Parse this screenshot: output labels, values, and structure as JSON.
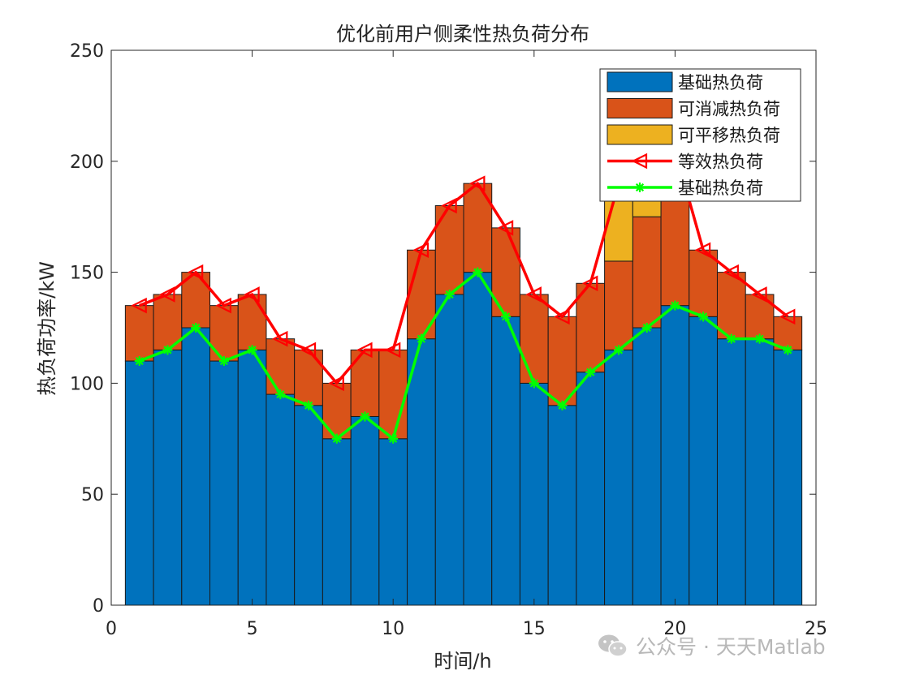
{
  "chart_data": {
    "type": "bar",
    "stacked": true,
    "title": "优化前用户侧柔性热负荷分布",
    "xlabel": "时间/h",
    "ylabel": "热负荷功率/kW",
    "xlim": [
      0,
      25
    ],
    "ylim": [
      0,
      250
    ],
    "xticks": [
      "0",
      "5",
      "10",
      "15",
      "20",
      "25"
    ],
    "yticks": [
      "0",
      "50",
      "100",
      "150",
      "200",
      "250"
    ],
    "x": [
      1,
      2,
      3,
      4,
      5,
      6,
      7,
      8,
      9,
      10,
      11,
      12,
      13,
      14,
      15,
      16,
      17,
      18,
      19,
      20,
      21,
      22,
      23,
      24
    ],
    "bar_series": [
      {
        "name": "基础热负荷",
        "color": "#0072BD",
        "values": [
          110,
          115,
          125,
          110,
          115,
          95,
          90,
          75,
          85,
          75,
          120,
          140,
          150,
          130,
          100,
          90,
          105,
          115,
          125,
          135,
          130,
          120,
          120,
          115
        ]
      },
      {
        "name": "可消减热负荷",
        "color": "#D95319",
        "values": [
          25,
          25,
          25,
          25,
          25,
          25,
          25,
          25,
          30,
          40,
          40,
          40,
          40,
          40,
          40,
          40,
          40,
          40,
          50,
          50,
          30,
          30,
          20,
          15
        ]
      },
      {
        "name": "可平移热负荷",
        "color": "#EDB120",
        "values": [
          0,
          0,
          0,
          0,
          0,
          0,
          0,
          0,
          0,
          0,
          0,
          0,
          0,
          0,
          0,
          0,
          0,
          35,
          25,
          20,
          0,
          0,
          0,
          0
        ]
      }
    ],
    "line_series": [
      {
        "name": "等效热负荷",
        "color": "#FF0000",
        "marker": "triangle-left",
        "values": [
          135,
          140,
          150,
          135,
          140,
          120,
          115,
          100,
          115,
          115,
          160,
          180,
          190,
          170,
          140,
          130,
          145,
          190,
          200,
          205,
          160,
          150,
          140,
          130
        ]
      },
      {
        "name": "基础热负荷",
        "color": "#00FF00",
        "marker": "asterisk",
        "values": [
          110,
          115,
          125,
          110,
          115,
          95,
          90,
          75,
          85,
          75,
          120,
          140,
          150,
          130,
          100,
          90,
          105,
          115,
          125,
          135,
          130,
          120,
          120,
          115
        ]
      }
    ],
    "legend_position": "top-right",
    "grid": false
  },
  "watermark": {
    "text": "公众号 · 天天Matlab",
    "icon": "wechat-icon"
  }
}
